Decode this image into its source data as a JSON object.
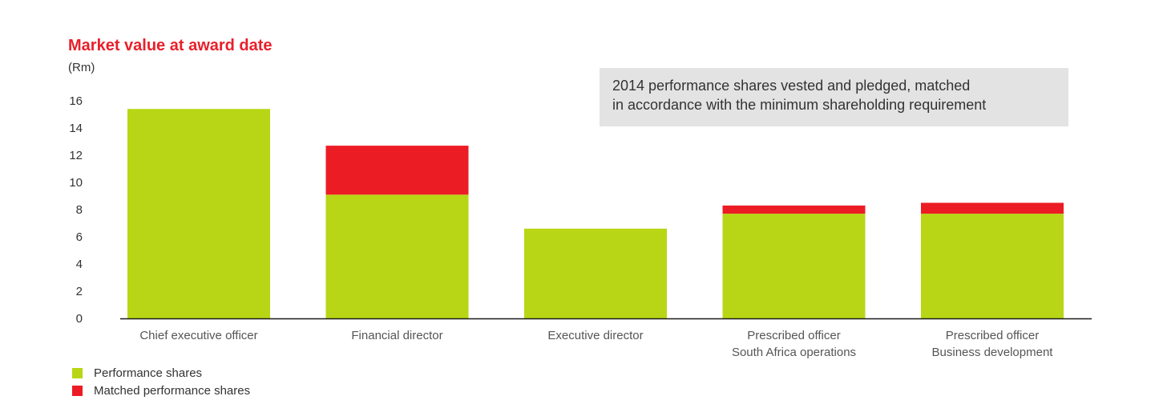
{
  "chart_data": {
    "type": "bar",
    "stacked": true,
    "title": "Market value at award date",
    "ylabel": "(Rm)",
    "xlabel": "",
    "ylim": [
      0,
      16
    ],
    "yticks": [
      0,
      2,
      4,
      6,
      8,
      10,
      12,
      14,
      16
    ],
    "grid": false,
    "categories": [
      [
        "Chief executive officer"
      ],
      [
        "Financial director"
      ],
      [
        "Executive director"
      ],
      [
        "Prescribed officer",
        "South Africa operations"
      ],
      [
        "Prescribed officer",
        "Business development"
      ]
    ],
    "series": [
      {
        "name": "Performance shares",
        "color": "#b8d615",
        "values": [
          15.4,
          9.1,
          6.6,
          7.7,
          7.7
        ]
      },
      {
        "name": "Matched performance shares",
        "color": "#ec1c24",
        "values": [
          0,
          3.6,
          0,
          0.6,
          0.8
        ]
      }
    ],
    "annotation": [
      "2014 performance shares vested and pledged, matched",
      "in accordance with the minimum shareholding requirement"
    ],
    "legend_position": "bottom-left"
  }
}
